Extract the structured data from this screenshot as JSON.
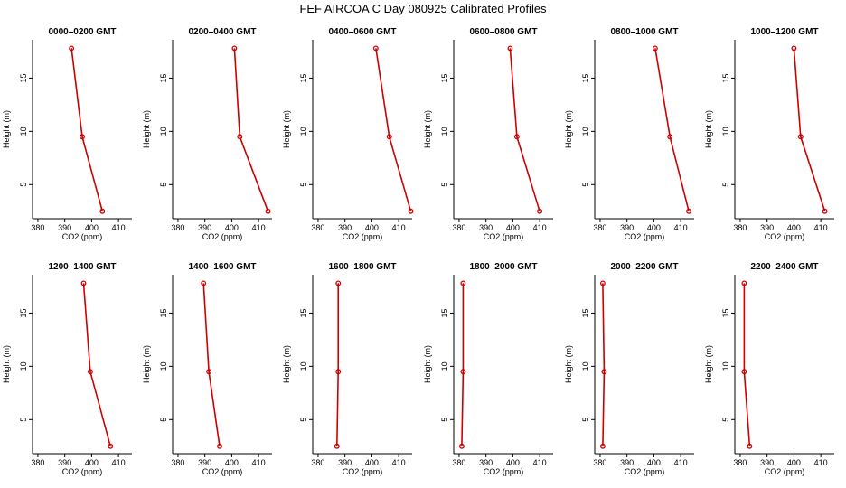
{
  "chart_data": {
    "type": "line",
    "title": "FEF AIRCOA C  Day 080925  Calibrated Profiles",
    "xlabel": "CO2 (ppm)",
    "ylabel": "Height (m)",
    "xlim": [
      378,
      415
    ],
    "ylim": [
      1.8,
      18.6
    ],
    "xticks": [
      380,
      390,
      400,
      410
    ],
    "yticks": [
      5,
      10,
      15
    ],
    "heights": [
      17.8,
      9.5,
      2.5
    ],
    "series_color": "#cc0000",
    "panels": [
      {
        "name": "0000-0200 GMT",
        "label": "0000–0200 GMT",
        "co2": [
          392.5,
          396.5,
          404.0
        ]
      },
      {
        "name": "0200-0400 GMT",
        "label": "0200–0400 GMT",
        "co2": [
          401.0,
          403.0,
          413.5
        ]
      },
      {
        "name": "0400-0600 GMT",
        "label": "0400–0600 GMT",
        "co2": [
          401.5,
          406.5,
          414.5
        ]
      },
      {
        "name": "0600-0800 GMT",
        "label": "0600–0800 GMT",
        "co2": [
          399.0,
          401.5,
          410.0
        ]
      },
      {
        "name": "0800-1000 GMT",
        "label": "0800–1000 GMT",
        "co2": [
          400.5,
          406.0,
          413.0
        ]
      },
      {
        "name": "1000-1200 GMT",
        "label": "1000–1200 GMT",
        "co2": [
          400.0,
          402.5,
          411.5
        ]
      },
      {
        "name": "1200-1400 GMT",
        "label": "1200–1400 GMT",
        "co2": [
          397.0,
          399.5,
          407.0
        ]
      },
      {
        "name": "1400-1600 GMT",
        "label": "1400–1600 GMT",
        "co2": [
          389.5,
          391.5,
          395.5
        ]
      },
      {
        "name": "1600-1800 GMT",
        "label": "1600–1800 GMT",
        "co2": [
          387.5,
          387.5,
          387.0
        ]
      },
      {
        "name": "1800-2000 GMT",
        "label": "1800–2000 GMT",
        "co2": [
          381.5,
          381.5,
          381.0
        ]
      },
      {
        "name": "2000-2200 GMT",
        "label": "2000–2200 GMT",
        "co2": [
          381.0,
          381.5,
          381.0
        ]
      },
      {
        "name": "2200-2400 GMT",
        "label": "2200–2400 GMT",
        "co2": [
          381.5,
          381.5,
          383.5
        ]
      }
    ]
  }
}
